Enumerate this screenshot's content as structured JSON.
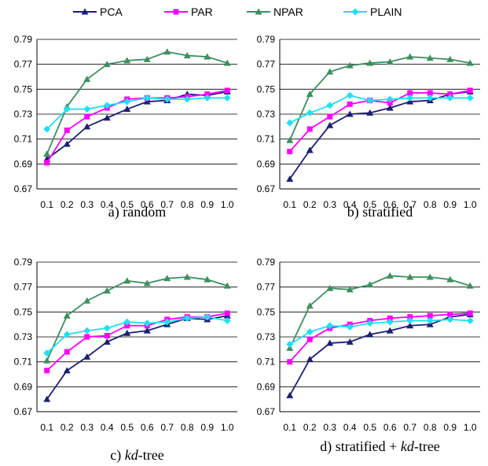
{
  "figure": {
    "legend_position": "top-center"
  },
  "legend": [
    {
      "name": "PCA",
      "color": "#1b1f73",
      "marker": "triangle"
    },
    {
      "name": "PAR",
      "color": "#ff00ff",
      "marker": "square"
    },
    {
      "name": "NPAR",
      "color": "#3d8f5f",
      "marker": "triangle"
    },
    {
      "name": "PLAIN",
      "color": "#1ee0f0",
      "marker": "diamond"
    }
  ],
  "chart_data": [
    {
      "type": "line",
      "caption": "a) random",
      "categories": [
        "0.1",
        "0.2",
        "0.3",
        "0.4",
        "0.5",
        "0.6",
        "0.7",
        "0.8",
        "0.9",
        "1.0"
      ],
      "ylim": [
        0.67,
        0.79
      ],
      "yticks": [
        "0.67",
        "0.69",
        "0.71",
        "0.73",
        "0.75",
        "0.77",
        "0.79"
      ],
      "grid": true,
      "series": [
        {
          "name": "PCA",
          "values": [
            0.694,
            0.706,
            0.72,
            0.727,
            0.734,
            0.74,
            0.741,
            0.746,
            0.745,
            0.748
          ]
        },
        {
          "name": "PAR",
          "values": [
            0.691,
            0.717,
            0.728,
            0.735,
            0.742,
            0.743,
            0.743,
            0.744,
            0.746,
            0.749
          ]
        },
        {
          "name": "NPAR",
          "values": [
            0.698,
            0.736,
            0.758,
            0.77,
            0.773,
            0.774,
            0.78,
            0.777,
            0.776,
            0.771
          ]
        },
        {
          "name": "PLAIN",
          "values": [
            0.718,
            0.734,
            0.734,
            0.737,
            0.74,
            0.743,
            0.742,
            0.742,
            0.743,
            0.743
          ]
        }
      ]
    },
    {
      "type": "line",
      "caption": "b) stratified",
      "categories": [
        "0.1",
        "0.2",
        "0.3",
        "0.4",
        "0.5",
        "0.6",
        "0.7",
        "0.8",
        "0.9",
        "1.0"
      ],
      "ylim": [
        0.67,
        0.79
      ],
      "yticks": [
        "0.67",
        "0.69",
        "0.71",
        "0.73",
        "0.75",
        "0.77",
        "0.79"
      ],
      "grid": true,
      "series": [
        {
          "name": "PCA",
          "values": [
            0.678,
            0.701,
            0.721,
            0.73,
            0.731,
            0.735,
            0.74,
            0.741,
            0.746,
            0.748
          ]
        },
        {
          "name": "PAR",
          "values": [
            0.7,
            0.718,
            0.728,
            0.738,
            0.741,
            0.739,
            0.747,
            0.747,
            0.746,
            0.749
          ]
        },
        {
          "name": "NPAR",
          "values": [
            0.709,
            0.746,
            0.764,
            0.769,
            0.771,
            0.772,
            0.776,
            0.775,
            0.774,
            0.771
          ]
        },
        {
          "name": "PLAIN",
          "values": [
            0.723,
            0.731,
            0.737,
            0.745,
            0.741,
            0.742,
            0.743,
            0.743,
            0.743,
            0.743
          ]
        }
      ]
    },
    {
      "type": "line",
      "caption": "c) kd-tree",
      "caption_prefix": "c) ",
      "caption_italic": "kd",
      "caption_suffix": "-tree",
      "categories": [
        "0.1",
        "0.2",
        "0.3",
        "0.4",
        "0.5",
        "0.6",
        "0.7",
        "0.8",
        "0.9",
        "1.0"
      ],
      "ylim": [
        0.67,
        0.79
      ],
      "yticks": [
        "0.67",
        "0.69",
        "0.71",
        "0.73",
        "0.75",
        "0.77",
        "0.79"
      ],
      "grid": true,
      "series": [
        {
          "name": "PCA",
          "values": [
            0.68,
            0.703,
            0.714,
            0.726,
            0.733,
            0.735,
            0.74,
            0.745,
            0.744,
            0.747
          ]
        },
        {
          "name": "PAR",
          "values": [
            0.703,
            0.718,
            0.73,
            0.731,
            0.739,
            0.739,
            0.744,
            0.746,
            0.746,
            0.749
          ]
        },
        {
          "name": "NPAR",
          "values": [
            0.711,
            0.747,
            0.759,
            0.767,
            0.775,
            0.773,
            0.777,
            0.778,
            0.776,
            0.771
          ]
        },
        {
          "name": "PLAIN",
          "values": [
            0.717,
            0.732,
            0.735,
            0.737,
            0.742,
            0.741,
            0.742,
            0.745,
            0.746,
            0.743
          ]
        }
      ]
    },
    {
      "type": "line",
      "caption": "d) stratified + kd-tree",
      "caption_prefix": "d) stratified + ",
      "caption_italic": "kd",
      "caption_suffix": "-tree",
      "categories": [
        "0.1",
        "0.2",
        "0.3",
        "0.4",
        "0.5",
        "0.6",
        "0.7",
        "0.8",
        "0.9",
        "1.0"
      ],
      "ylim": [
        0.67,
        0.79
      ],
      "yticks": [
        "0.67",
        "0.69",
        "0.71",
        "0.73",
        "0.75",
        "0.77",
        "0.79"
      ],
      "grid": true,
      "series": [
        {
          "name": "PCA",
          "values": [
            0.683,
            0.712,
            0.725,
            0.726,
            0.732,
            0.735,
            0.739,
            0.74,
            0.746,
            0.748
          ]
        },
        {
          "name": "PAR",
          "values": [
            0.71,
            0.728,
            0.737,
            0.74,
            0.743,
            0.745,
            0.746,
            0.747,
            0.748,
            0.749
          ]
        },
        {
          "name": "NPAR",
          "values": [
            0.721,
            0.755,
            0.769,
            0.768,
            0.772,
            0.779,
            0.778,
            0.778,
            0.776,
            0.771
          ]
        },
        {
          "name": "PLAIN",
          "values": [
            0.724,
            0.734,
            0.739,
            0.738,
            0.741,
            0.742,
            0.743,
            0.743,
            0.744,
            0.743
          ]
        }
      ]
    }
  ]
}
